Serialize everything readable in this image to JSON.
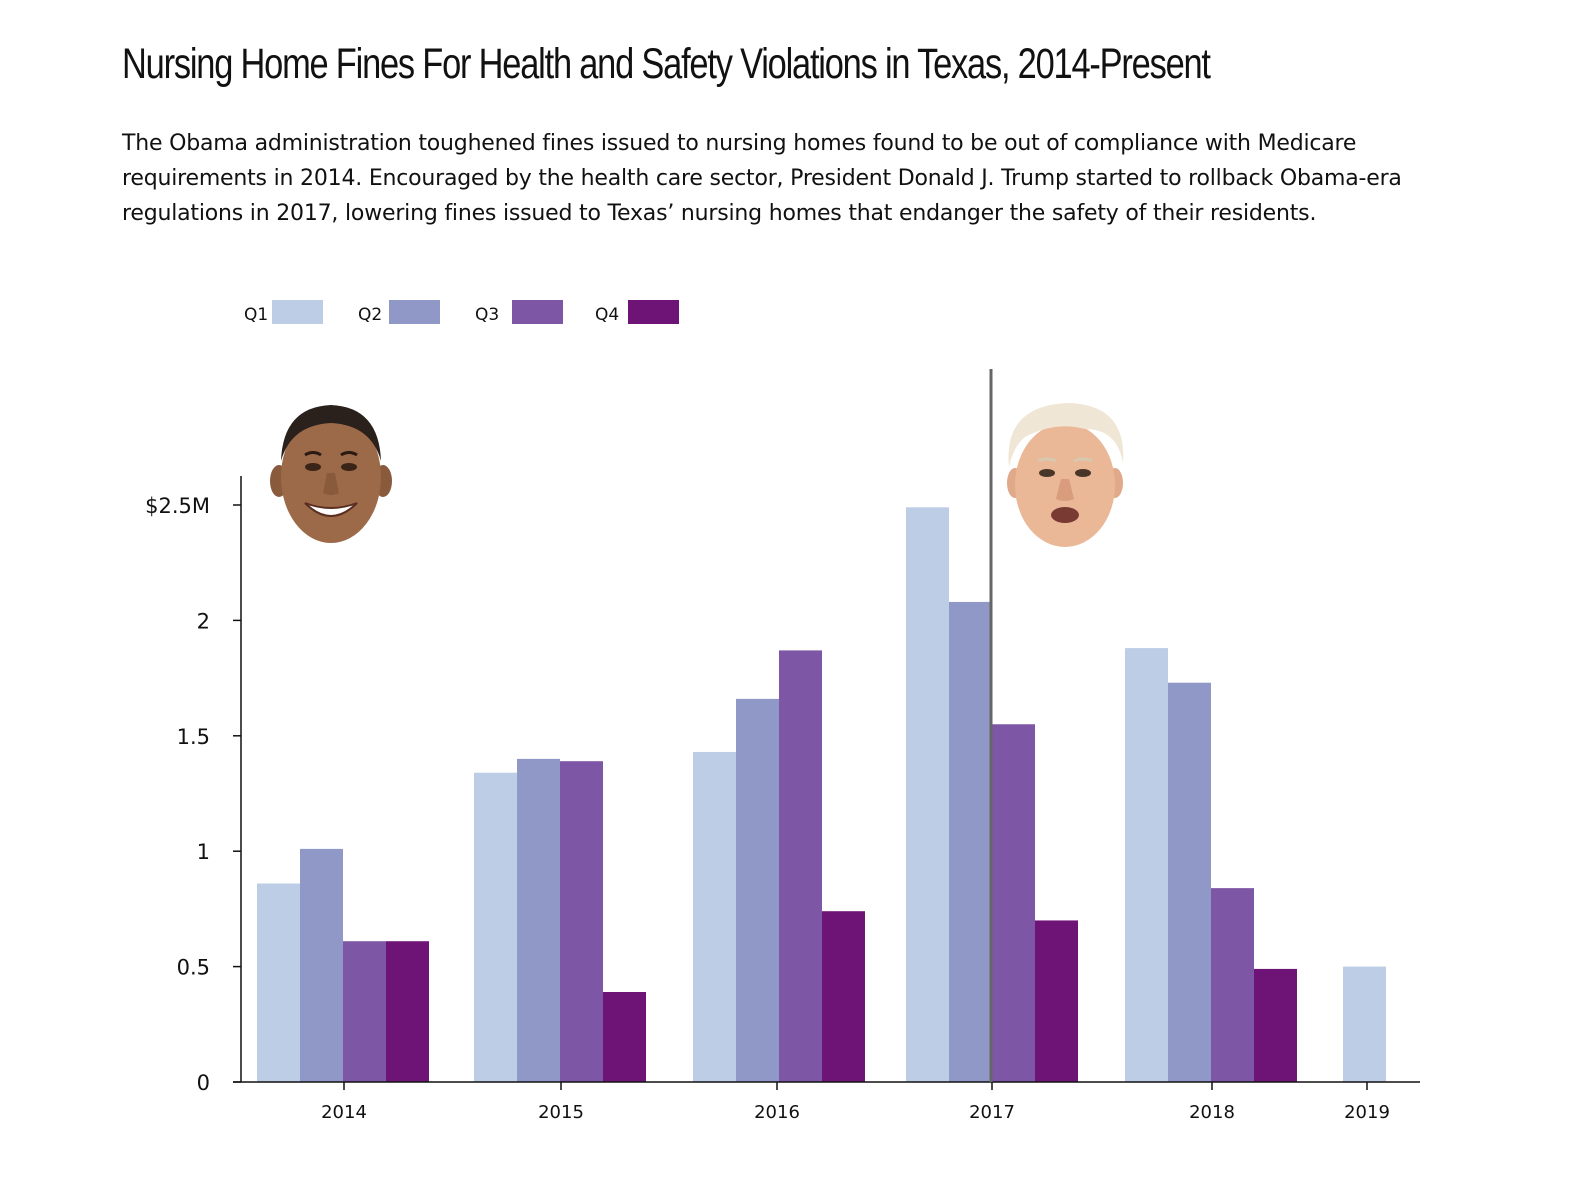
{
  "title": "Nursing Home Fines For Health and Safety Violations in Texas, 2014-Present",
  "subtitle": "The Obama administration toughened fines issued to nursing homes found to be out of compliance with Medicare requirements in 2014. Encouraged by the health care sector, President Donald J. Trump started to rollback Obama-era regulations in 2017, lowering fines issued to Texas’ nursing homes that endanger the safety of their residents.",
  "chart_data": {
    "type": "bar",
    "title": "Nursing Home Fines For Health and Safety Violations in Texas, 2014-Present",
    "xlabel": "",
    "ylabel": "",
    "categories": [
      "2014",
      "2015",
      "2016",
      "2017",
      "2018",
      "2019"
    ],
    "series": [
      {
        "name": "Q1",
        "color": "#bccde5",
        "values": [
          0.86,
          1.34,
          1.43,
          2.49,
          1.88,
          0.5
        ]
      },
      {
        "name": "Q2",
        "color": "#8f98c6",
        "values": [
          1.01,
          1.4,
          1.66,
          2.08,
          1.73,
          null
        ]
      },
      {
        "name": "Q3",
        "color": "#7d57a5",
        "values": [
          0.61,
          1.39,
          1.87,
          1.55,
          0.84,
          null
        ]
      },
      {
        "name": "Q4",
        "color": "#6e1476",
        "values": [
          0.61,
          0.39,
          0.74,
          0.7,
          0.49,
          null
        ]
      }
    ],
    "y_ticks": [
      {
        "value": 0,
        "label": "0"
      },
      {
        "value": 0.5,
        "label": "0.5"
      },
      {
        "value": 1,
        "label": "1"
      },
      {
        "value": 1.5,
        "label": "1.5"
      },
      {
        "value": 2,
        "label": "2"
      },
      {
        "value": 2.5,
        "label": "$2.5M"
      }
    ],
    "ylim": [
      0,
      2.5
    ],
    "grid": false,
    "legend_position": "top-left",
    "annotation": "vertical line marking start of 2017 Q3"
  },
  "icons": {
    "left_portrait": "obama-face-icon",
    "right_portrait": "trump-face-icon"
  }
}
